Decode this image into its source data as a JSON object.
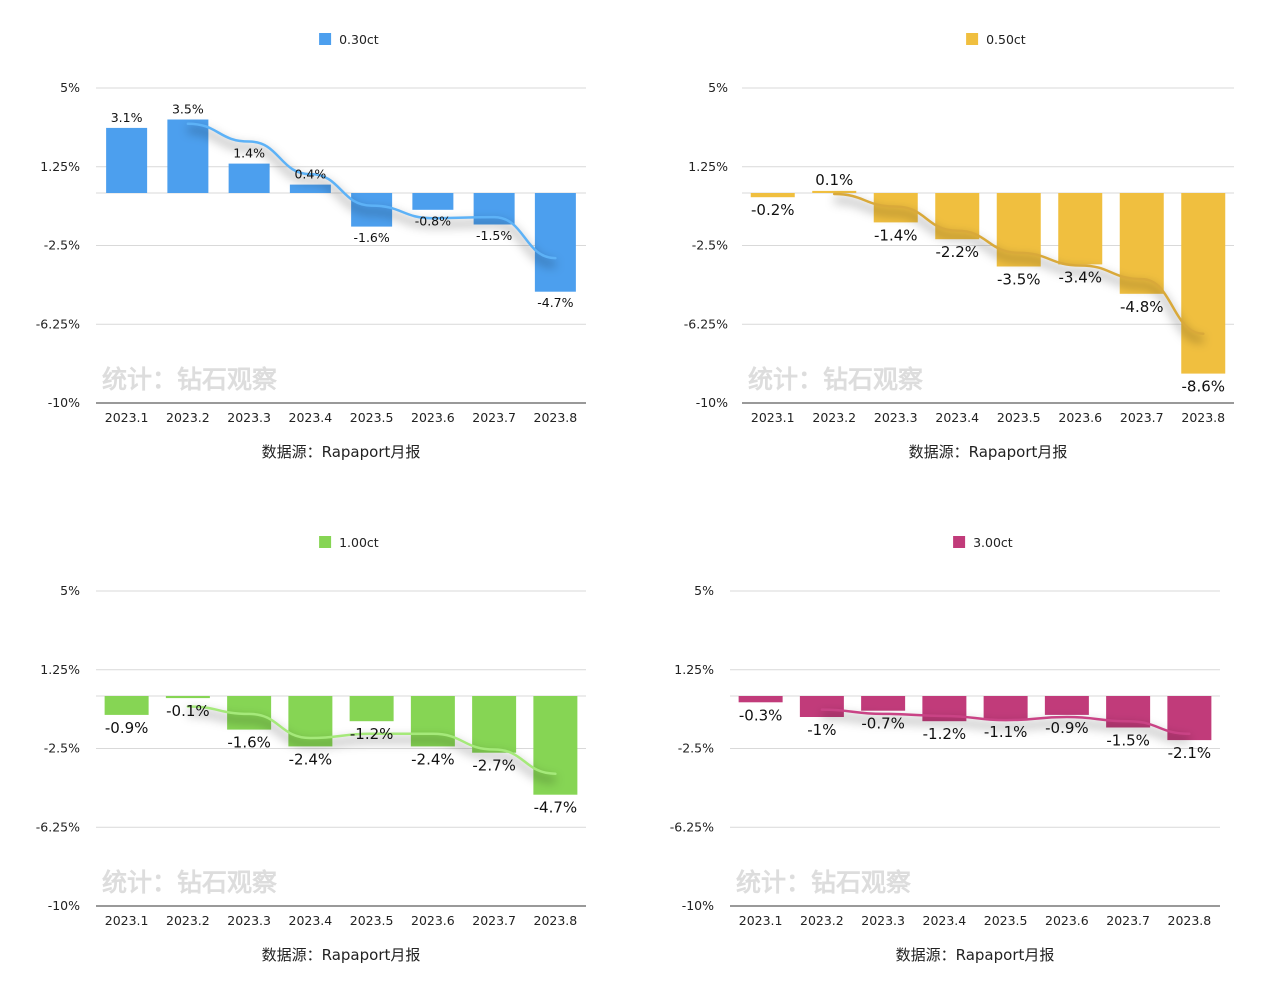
{
  "chart_data": [
    {
      "type": "bar",
      "series": [
        {
          "name": "0.30ct",
          "values": [
            3.1,
            3.5,
            1.4,
            0.4,
            -1.6,
            -0.8,
            -1.5,
            -4.7
          ]
        }
      ],
      "data_labels": [
        "3.1%",
        "3.5%",
        "1.4%",
        "0.4%",
        "-1.6%",
        "-0.8%",
        "-1.5%",
        "-4.7%"
      ],
      "categories": [
        "2023.1",
        "2023.2",
        "2023.3",
        "2023.4",
        "2023.5",
        "2023.6",
        "2023.7",
        "2023.8"
      ],
      "ytick_labels": [
        "5%",
        "1.25%",
        "-2.5%",
        "-6.25%",
        "-10%"
      ],
      "ylim": [
        -10,
        5
      ],
      "color": "#4C9FEE",
      "trend_color": "#5DB2F7",
      "trendline": "moving average",
      "grid": true,
      "legend": "top-center",
      "watermark": "统计：钻石观察",
      "source": "数据源：Rapaport月报"
    },
    {
      "type": "bar",
      "series": [
        {
          "name": "0.50ct",
          "values": [
            -0.2,
            0.1,
            -1.4,
            -2.2,
            -3.5,
            -3.4,
            -4.8,
            -8.6
          ]
        }
      ],
      "data_labels": [
        "-0.2%",
        "0.1%",
        "-1.4%",
        "-2.2%",
        "-3.5%",
        "-3.4%",
        "-4.8%",
        "-8.6%"
      ],
      "categories": [
        "2023.1",
        "2023.2",
        "2023.3",
        "2023.4",
        "2023.5",
        "2023.6",
        "2023.7",
        "2023.8"
      ],
      "ytick_labels": [
        "5%",
        "1.25%",
        "-2.5%",
        "-6.25%",
        "-10%"
      ],
      "ylim": [
        -10,
        5
      ],
      "color": "#F0BF3F",
      "trend_color": "#D9A93A",
      "trendline": "moving average",
      "grid": true,
      "legend": "top-center",
      "watermark": "统计：钻石观察",
      "source": "数据源：Rapaport月报"
    },
    {
      "type": "bar",
      "series": [
        {
          "name": "1.00ct",
          "values": [
            -0.9,
            -0.1,
            -1.6,
            -2.4,
            -1.2,
            -2.4,
            -2.7,
            -4.7
          ]
        }
      ],
      "data_labels": [
        "-0.9%",
        "-0.1%",
        "-1.6%",
        "-2.4%",
        "-1.2%",
        "-2.4%",
        "-2.7%",
        "-4.7%"
      ],
      "categories": [
        "2023.1",
        "2023.2",
        "2023.3",
        "2023.4",
        "2023.5",
        "2023.6",
        "2023.7",
        "2023.8"
      ],
      "ytick_labels": [
        "5%",
        "1.25%",
        "-2.5%",
        "-6.25%",
        "-10%"
      ],
      "ylim": [
        -10,
        5
      ],
      "color": "#86D554",
      "trend_color": "#A5E97A",
      "trendline": "moving average",
      "grid": true,
      "legend": "top-center",
      "watermark": "统计：钻石观察",
      "source": "数据源：Rapaport月报"
    },
    {
      "type": "bar",
      "series": [
        {
          "name": "3.00ct",
          "values": [
            -0.3,
            -1,
            -0.7,
            -1.2,
            -1.1,
            -0.9,
            -1.5,
            -2.1
          ]
        }
      ],
      "data_labels": [
        "-0.3%",
        "-1%",
        "-0.7%",
        "-1.2%",
        "-1.1%",
        "-0.9%",
        "-1.5%",
        "-2.1%"
      ],
      "categories": [
        "2023.1",
        "2023.2",
        "2023.3",
        "2023.4",
        "2023.5",
        "2023.6",
        "2023.7",
        "2023.8"
      ],
      "ytick_labels": [
        "5%",
        "1.25%",
        "-2.5%",
        "-6.25%",
        "-10%"
      ],
      "ylim": [
        -10,
        5
      ],
      "color": "#C13B7A",
      "trend_color": "#C94385",
      "trendline": "moving average",
      "grid": true,
      "legend": "top-center",
      "watermark": "统计：钻石观察",
      "source": "数据源：Rapaport月报"
    }
  ]
}
